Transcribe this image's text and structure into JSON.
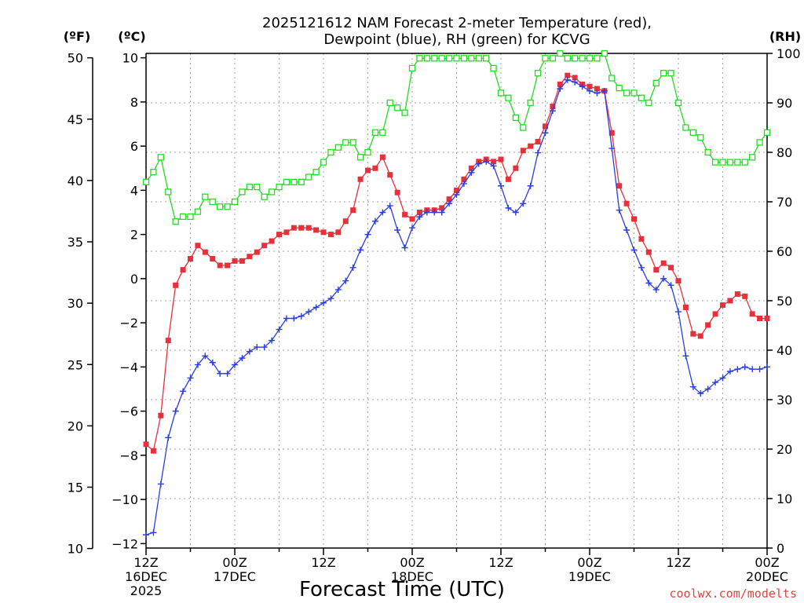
{
  "chart_data": {
    "type": "line",
    "title_line1": "2025121612 NAM Forecast 2-meter Temperature (red),",
    "title_line2": "Dewpoint (blue), RH (green) for KCVG",
    "xlabel": "Forecast Time (UTC)",
    "credit": "coolwx.com/modelts",
    "unit_labels": {
      "fahrenheit": "(ºF)",
      "celsius": "(ºC)",
      "rh": "(RH)"
    },
    "celsius_axis": {
      "range": [
        -12.2,
        10.2
      ],
      "ticks": [
        "10",
        "8",
        "6",
        "4",
        "2",
        "0",
        "−2",
        "−4",
        "−6",
        "−8",
        "−10",
        "−12"
      ]
    },
    "fahrenheit_axis": {
      "ticks": [
        "50",
        "45",
        "40",
        "35",
        "30",
        "25",
        "20",
        "15",
        "10"
      ]
    },
    "rh_axis": {
      "range": [
        0,
        100
      ],
      "ticks": [
        "100",
        "90",
        "80",
        "70",
        "60",
        "50",
        "40",
        "30",
        "20",
        "10",
        "0"
      ]
    },
    "x_axis": {
      "range_hours": [
        0,
        84
      ],
      "ticks": [
        {
          "hour": 0,
          "line1": "12Z",
          "line2": "16DEC",
          "line3": "2025"
        },
        {
          "hour": 12,
          "line1": "00Z",
          "line2": "17DEC",
          "line3": ""
        },
        {
          "hour": 24,
          "line1": "12Z",
          "line2": "",
          "line3": ""
        },
        {
          "hour": 36,
          "line1": "00Z",
          "line2": "18DEC",
          "line3": ""
        },
        {
          "hour": 48,
          "line1": "12Z",
          "line2": "",
          "line3": ""
        },
        {
          "hour": 60,
          "line1": "00Z",
          "line2": "19DEC",
          "line3": ""
        },
        {
          "hour": 72,
          "line1": "12Z",
          "line2": "",
          "line3": ""
        },
        {
          "hour": 84,
          "line1": "00Z",
          "line2": "20DEC",
          "line3": ""
        }
      ]
    },
    "series": [
      {
        "name": "Temperature (°C)",
        "color": "#e8303a",
        "marker": "square",
        "values": [
          -7.5,
          -7.8,
          -6.2,
          -2.8,
          -0.3,
          0.4,
          0.9,
          1.5,
          1.2,
          0.9,
          0.6,
          0.6,
          0.8,
          0.8,
          1.0,
          1.2,
          1.5,
          1.7,
          2.0,
          2.1,
          2.3,
          2.3,
          2.3,
          2.2,
          2.1,
          2.0,
          2.1,
          2.6,
          3.1,
          4.5,
          4.9,
          5.0,
          5.5,
          4.7,
          3.9,
          2.9,
          2.7,
          3.0,
          3.1,
          3.1,
          3.2,
          3.6,
          4.0,
          4.5,
          5.0,
          5.3,
          5.4,
          5.3,
          5.4,
          4.5,
          5.0,
          5.8,
          6.0,
          6.2,
          6.9,
          7.8,
          8.8,
          9.2,
          9.1,
          8.8,
          8.7,
          8.6,
          8.5,
          6.6,
          4.2,
          3.4,
          2.7,
          1.8,
          1.2,
          0.4,
          0.7,
          0.5,
          -0.1,
          -1.3,
          -2.5,
          -2.6,
          -2.1,
          -1.6,
          -1.2,
          -1.0,
          -0.7,
          -0.8,
          -1.6,
          -1.8,
          -1.8
        ]
      },
      {
        "name": "Dewpoint (°C)",
        "color": "#2a3ee0",
        "marker": "plus",
        "values": [
          -11.6,
          -11.5,
          -9.3,
          -7.2,
          -6.0,
          -5.1,
          -4.5,
          -3.9,
          -3.5,
          -3.8,
          -4.3,
          -4.3,
          -3.9,
          -3.6,
          -3.3,
          -3.1,
          -3.1,
          -2.8,
          -2.3,
          -1.8,
          -1.8,
          -1.7,
          -1.5,
          -1.3,
          -1.1,
          -0.9,
          -0.5,
          -0.1,
          0.5,
          1.3,
          2.0,
          2.6,
          3.0,
          3.3,
          2.2,
          1.4,
          2.3,
          2.8,
          3.0,
          3.0,
          3.0,
          3.4,
          3.8,
          4.3,
          4.8,
          5.2,
          5.3,
          5.1,
          4.2,
          3.2,
          3.0,
          3.4,
          4.2,
          5.7,
          6.6,
          7.6,
          8.6,
          9.0,
          8.9,
          8.7,
          8.5,
          8.4,
          8.5,
          5.9,
          3.1,
          2.2,
          1.3,
          0.5,
          -0.2,
          -0.5,
          0.0,
          -0.3,
          -1.5,
          -3.5,
          -4.9,
          -5.2,
          -5.0,
          -4.7,
          -4.5,
          -4.2,
          -4.1,
          -4.0,
          -4.1,
          -4.1,
          -4.0
        ]
      },
      {
        "name": "RH (%)",
        "color": "#22dd22",
        "marker": "open-square",
        "values": [
          74,
          76,
          79,
          72,
          66,
          67,
          67,
          68,
          71,
          70,
          69,
          69,
          70,
          72,
          73,
          73,
          71,
          72,
          73,
          74,
          74,
          74,
          75,
          76,
          78,
          80,
          81,
          82,
          82,
          79,
          80,
          84,
          84,
          90,
          89,
          88,
          97,
          99,
          99,
          99,
          99,
          99,
          99,
          99,
          99,
          99,
          99,
          97,
          92,
          91,
          87,
          85,
          90,
          96,
          99,
          99,
          100,
          99,
          99,
          99,
          99,
          99,
          100,
          95,
          93,
          92,
          92,
          91,
          90,
          94,
          96,
          96,
          90,
          85,
          84,
          83,
          80,
          78,
          78,
          78,
          78,
          78,
          79,
          82,
          84
        ]
      }
    ]
  }
}
